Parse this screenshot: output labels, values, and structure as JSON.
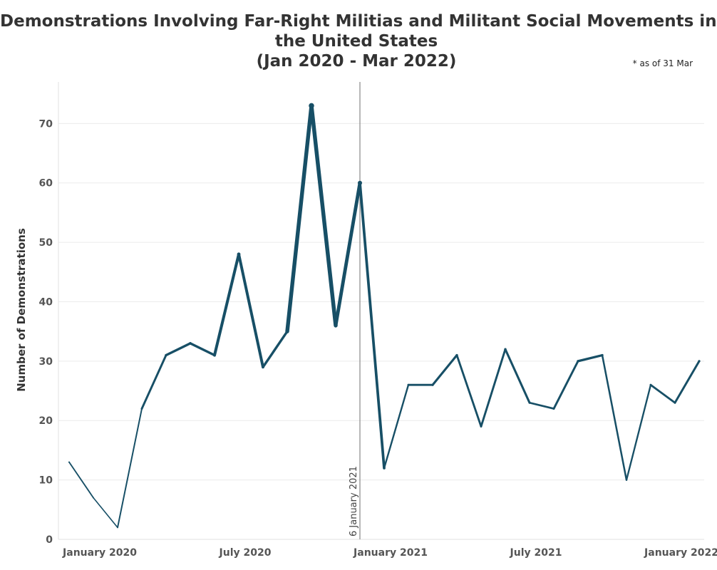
{
  "chart_data": {
    "type": "line",
    "title_lines": [
      "Demonstrations Involving Far-Right Militias and Militant Social Movements in",
      "the United States",
      "(Jan 2020 - Mar 2022)"
    ],
    "note": "* as of 31 Mar",
    "ylabel": "Number of Demonstrations",
    "xlabel": "",
    "ylim": [
      0,
      77
    ],
    "yticks": [
      0,
      10,
      20,
      30,
      40,
      50,
      60,
      70
    ],
    "xticks": [
      {
        "label": "January 2020",
        "month": "2020-01"
      },
      {
        "label": "July 2020",
        "month": "2020-07"
      },
      {
        "label": "January 2021",
        "month": "2021-01"
      },
      {
        "label": "July 2021",
        "month": "2021-07"
      },
      {
        "label": "January 2022",
        "month": "2022-01"
      }
    ],
    "series": [
      {
        "color": "#174f66",
        "x": [
          "2020-01",
          "2020-02",
          "2020-03",
          "2020-04",
          "2020-05",
          "2020-06",
          "2020-07",
          "2020-08",
          "2020-09",
          "2020-10",
          "2020-11",
          "2020-12",
          "2021-01",
          "2021-02",
          "2021-03",
          "2021-04",
          "2021-05",
          "2021-06",
          "2021-07",
          "2021-08",
          "2021-09",
          "2021-10",
          "2021-11",
          "2021-12",
          "2022-01",
          "2022-02",
          "2022-03"
        ],
        "values": [
          13,
          7,
          2,
          22,
          31,
          33,
          31,
          48,
          29,
          35,
          73,
          36,
          60,
          12,
          26,
          26,
          31,
          19,
          32,
          23,
          22,
          30,
          31,
          10,
          26,
          23,
          30
        ]
      }
    ],
    "event_line": {
      "label": "6 January 2021",
      "month": "2021-01"
    },
    "grid": true
  }
}
